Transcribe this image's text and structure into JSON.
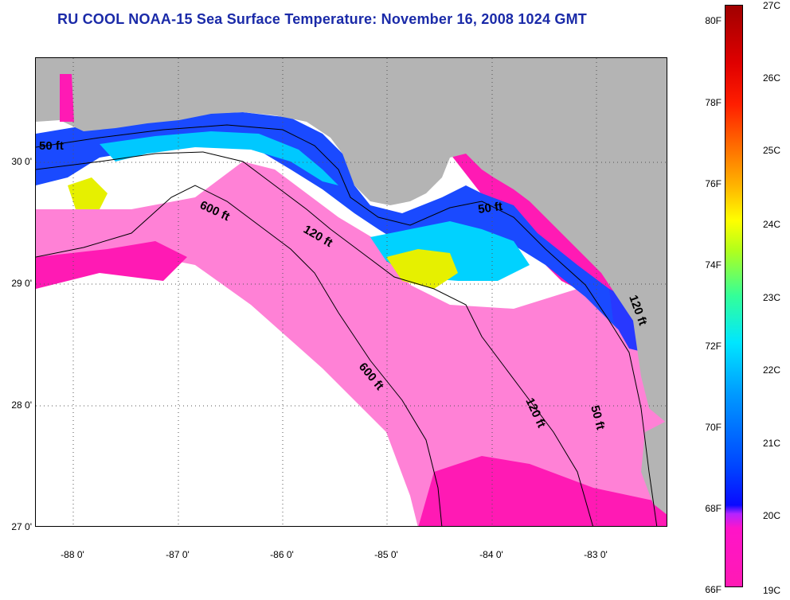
{
  "title": "RU COOL  NOAA-15  Sea Surface Temperature:  November 16, 2008 1024 GMT",
  "map": {
    "lat_labels": [
      "30 0'",
      "29 0'",
      "28 0'",
      "27 0'"
    ],
    "lon_labels": [
      "-88 0'",
      "-87 0'",
      "-86 0'",
      "-85 0'",
      "-84 0'",
      "-83 0'"
    ],
    "contour_labels": [
      "50 ft",
      "600 ft",
      "120 ft",
      "50 ft",
      "120 ft",
      "600 ft",
      "120 ft",
      "50 ft"
    ],
    "colors": {
      "land": "#b4b4b4",
      "cloud": "#ffffff",
      "coldest": "#ff1ab4",
      "cold_blue": "#0a2aff",
      "mid_cyan": "#00d2ff",
      "warm_yellow": "#e6f000"
    }
  },
  "colorbar": {
    "fahrenheit": [
      "80F",
      "78F",
      "76F",
      "74F",
      "72F",
      "70F",
      "68F",
      "66F"
    ],
    "celsius": [
      "27C",
      "26C",
      "25C",
      "24C",
      "23C",
      "22C",
      "21C",
      "20C",
      "19C"
    ]
  }
}
